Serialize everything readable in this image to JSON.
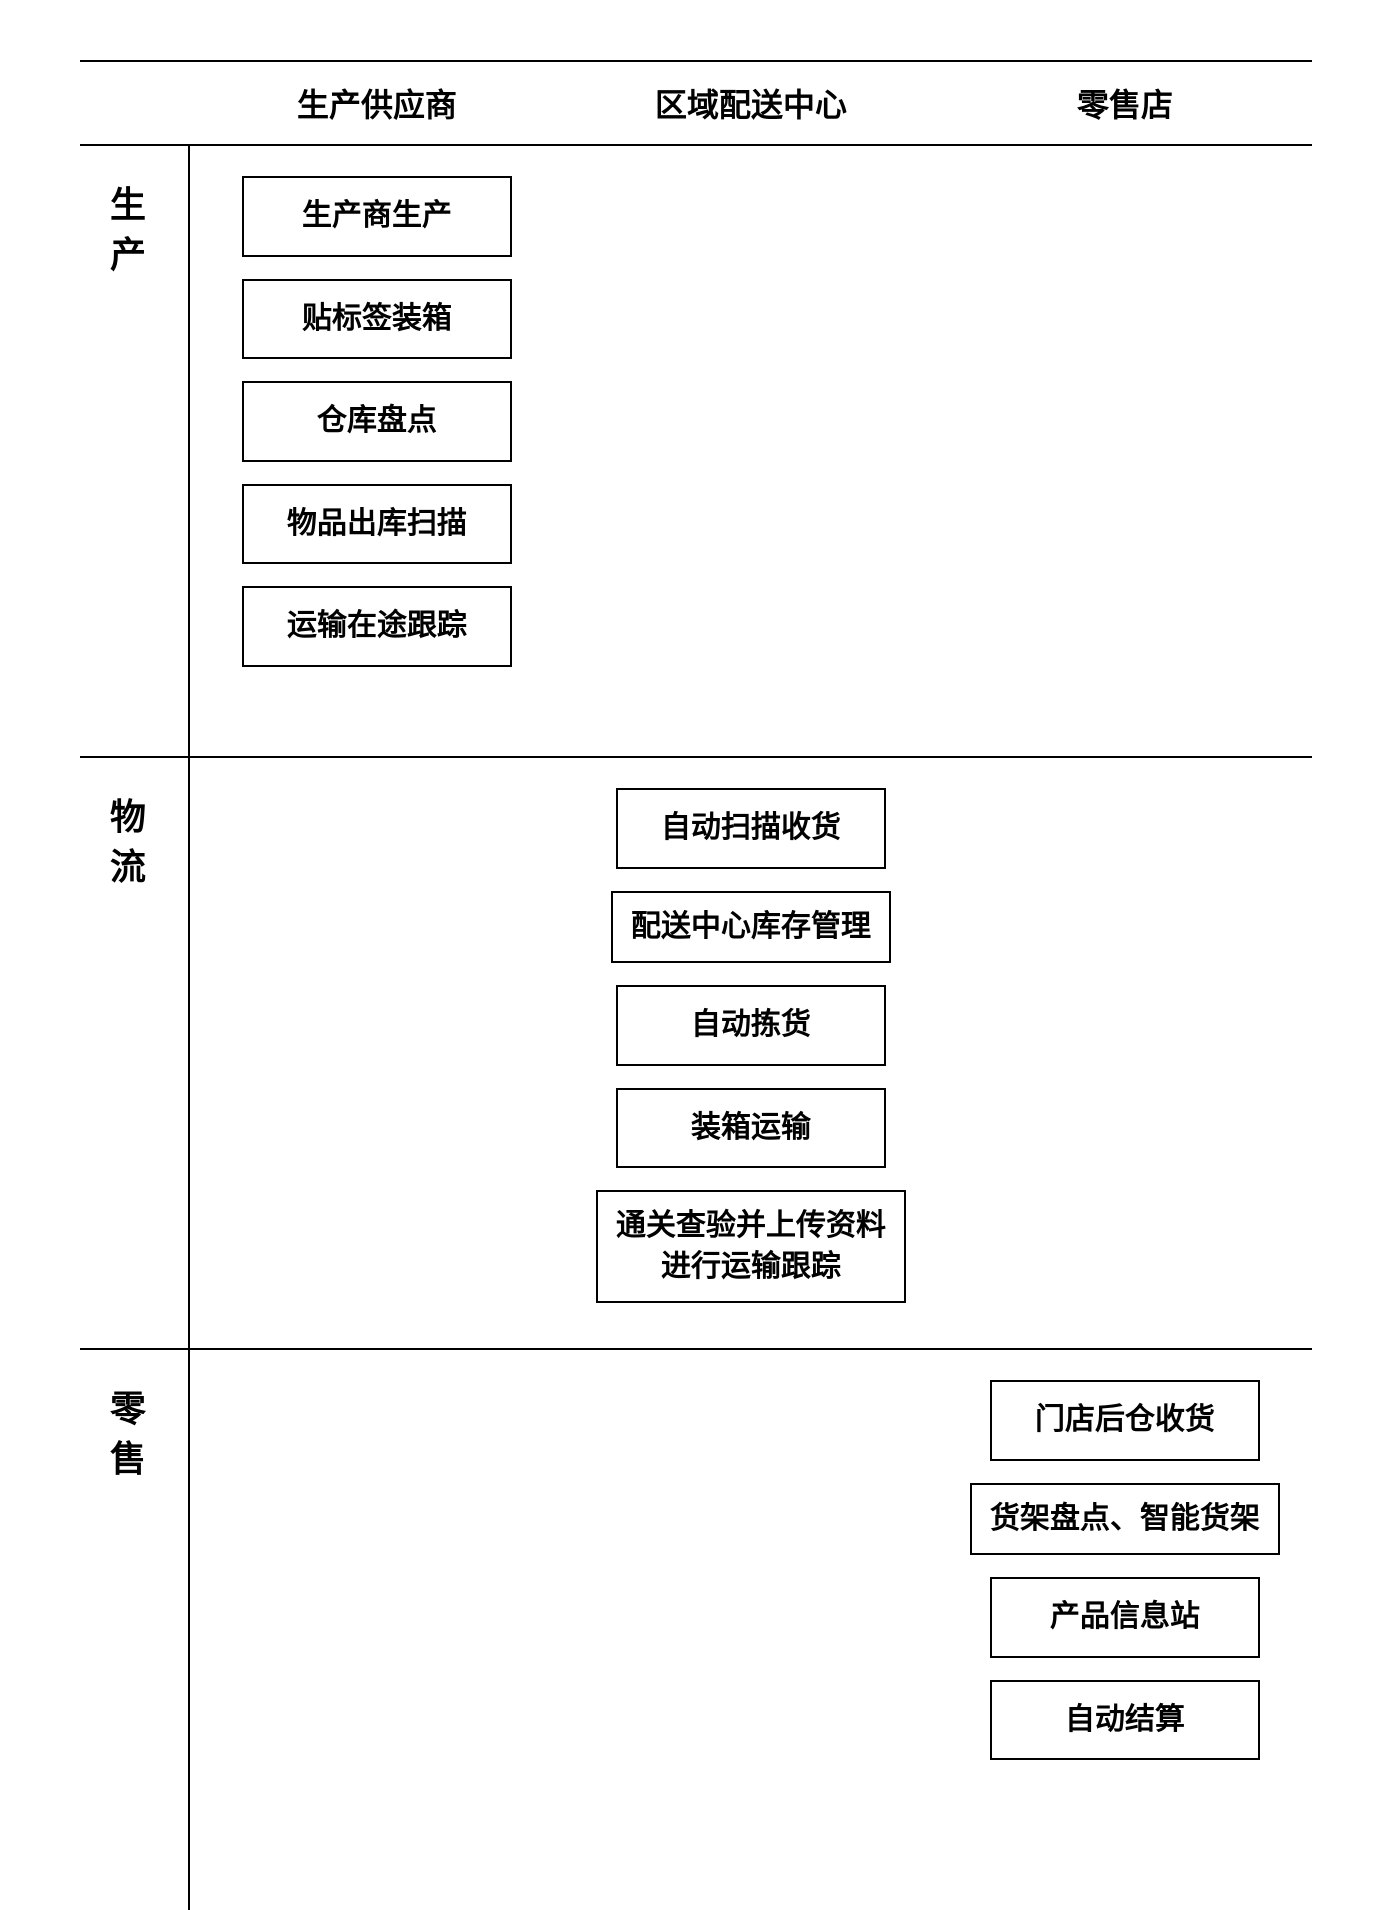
{
  "type": "flowchart",
  "background_color": "#ffffff",
  "border_color": "#000000",
  "border_width": 2,
  "font_family": "SimSun",
  "header_fontsize": 32,
  "row_label_fontsize": 36,
  "box_fontsize": 30,
  "text_color": "#000000",
  "box_min_width": 270,
  "box_gap": 22,
  "columns": [
    {
      "id": "supplier",
      "label": "生产供应商"
    },
    {
      "id": "distribution",
      "label": "区域配送中心"
    },
    {
      "id": "retail",
      "label": "零售店"
    }
  ],
  "rows": [
    {
      "id": "production",
      "label": "生产",
      "cells": {
        "supplier": [
          "生产商生产",
          "贴标签装箱",
          "仓库盘点",
          "物品出库扫描",
          "运输在途跟踪"
        ],
        "distribution": [],
        "retail": []
      }
    },
    {
      "id": "logistics",
      "label": "物流",
      "cells": {
        "supplier": [],
        "distribution": [
          "自动扫描收货",
          "配送中心库存管理",
          "自动拣货",
          "装箱运输",
          "通关查验并上传资料进行运输跟踪"
        ],
        "retail": []
      }
    },
    {
      "id": "retail_row",
      "label": "零售",
      "cells": {
        "supplier": [],
        "distribution": [],
        "retail": [
          "门店后仓收货",
          "货架盘点、智能货架",
          "产品信息站",
          "自动结算"
        ]
      }
    }
  ]
}
